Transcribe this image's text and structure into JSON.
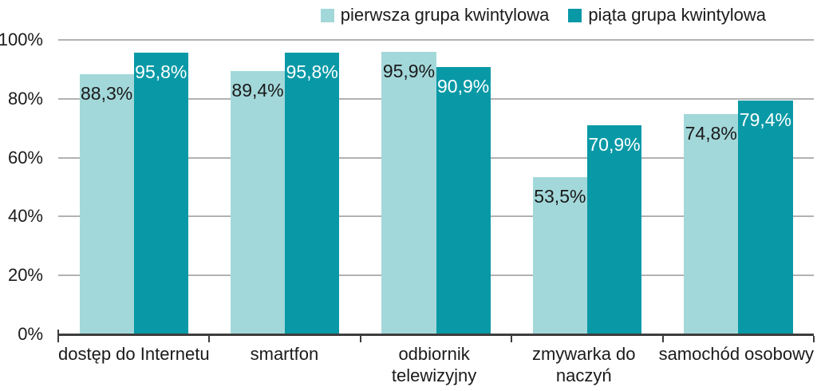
{
  "legend": {
    "items": [
      {
        "label": "pierwsza grupa kwintylowa",
        "color": "#a3d8da"
      },
      {
        "label": "piąta grupa kwintylowa",
        "color": "#0999a6"
      }
    ]
  },
  "chart_data": {
    "type": "bar",
    "title": "",
    "categories": [
      "dostęp do Internetu",
      "smartfon",
      "odbiornik telewizyjny",
      "zmywarka do naczyń",
      "samochód osobowy"
    ],
    "category_lines": [
      [
        "dostęp do Internetu"
      ],
      [
        "smartfon"
      ],
      [
        "odbiornik",
        "telewizyjny"
      ],
      [
        "zmywarka do",
        "naczyń"
      ],
      [
        "samochód osobowy"
      ]
    ],
    "series": [
      {
        "name": "pierwsza grupa kwintylowa",
        "color": "#a3d8da",
        "label_color": "#1a1a1a",
        "values": [
          88.3,
          89.4,
          95.9,
          53.5,
          74.8
        ],
        "value_labels": [
          "88,3%",
          "89,4%",
          "95,9%",
          "53,5%",
          "74,8%"
        ]
      },
      {
        "name": "piąta grupa kwintylowa",
        "color": "#0999a6",
        "label_color": "#ffffff",
        "values": [
          95.8,
          95.8,
          90.9,
          70.9,
          79.4
        ],
        "value_labels": [
          "95,8%",
          "95,8%",
          "90,9%",
          "70,9%",
          "79,4%"
        ]
      }
    ],
    "y_axis": {
      "min": 0,
      "max": 100,
      "tick_step": 20,
      "tick_values": [
        100,
        80,
        60,
        40,
        20,
        0
      ],
      "tick_labels": [
        "100%",
        "80%",
        "60%",
        "40%",
        "20%",
        "0%"
      ]
    },
    "grid": true,
    "legend_position": "top-right",
    "colors": {
      "gridline": "#b2b2b2",
      "axis": "#3d3d3d",
      "text": "#1b1b1b"
    }
  }
}
